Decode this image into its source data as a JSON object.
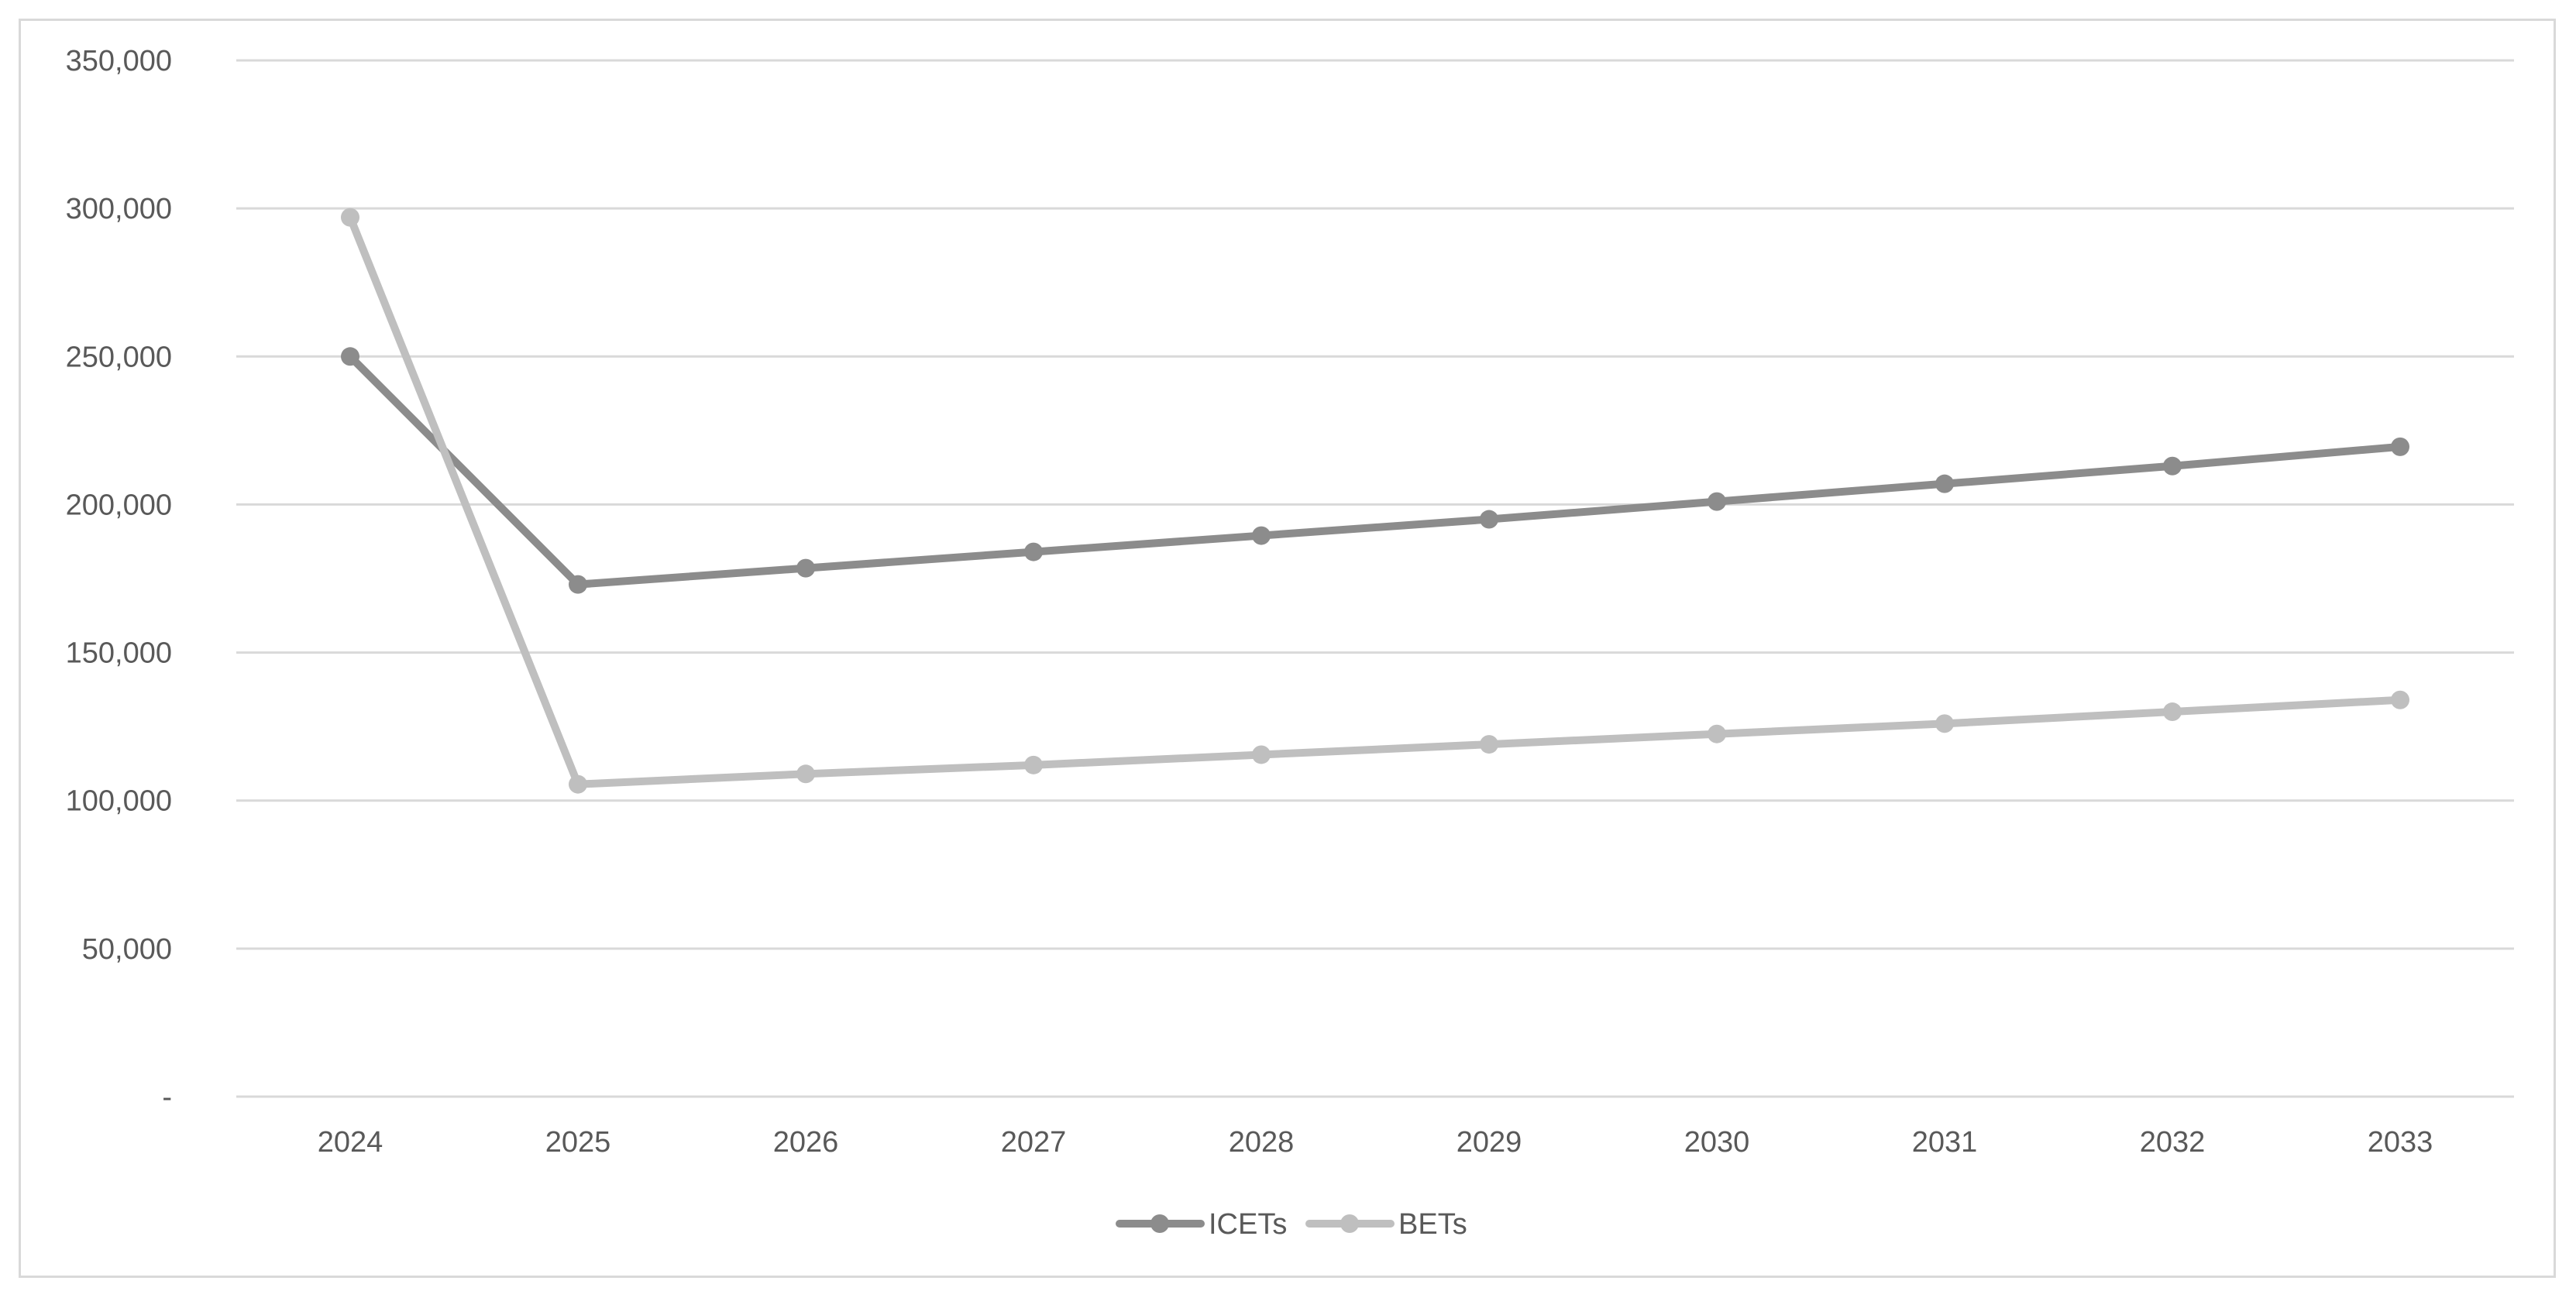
{
  "chart_data": {
    "type": "line",
    "title": "",
    "xlabel": "",
    "ylabel": "",
    "x": [
      "2024",
      "2025",
      "2026",
      "2027",
      "2028",
      "2029",
      "2030",
      "2031",
      "2032",
      "2033"
    ],
    "ylim": [
      0,
      350000
    ],
    "yticks": [
      0,
      50000,
      100000,
      150000,
      200000,
      250000,
      300000,
      350000
    ],
    "ytick_labels": [
      "-",
      "50,000",
      "100,000",
      "150,000",
      "200,000",
      "250,000",
      "300,000",
      "350,000"
    ],
    "grid": "horizontal",
    "legend_position": "bottom",
    "series": [
      {
        "name": "ICETs",
        "color": "#8c8c8c",
        "values": [
          250000,
          173000,
          178500,
          184000,
          189500,
          195000,
          201000,
          207000,
          213000,
          219500
        ]
      },
      {
        "name": "BETs",
        "color": "#bfbfbf",
        "values": [
          297000,
          105500,
          109000,
          112000,
          115500,
          119000,
          122500,
          126000,
          130000,
          134000
        ]
      }
    ]
  }
}
